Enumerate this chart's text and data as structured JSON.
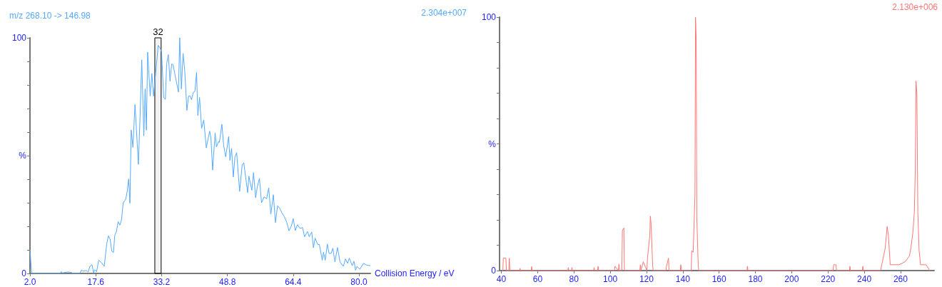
{
  "chart_data": [
    {
      "type": "line",
      "title": "m/z 268.10 -> 146.98",
      "annotations": [
        "2.304e+007"
      ],
      "xlabel": "Collision Energy / eV",
      "marker": "none",
      "xlim": [
        2,
        82.7
      ],
      "xticks": [
        {
          "value": 2,
          "label": "2.0"
        },
        {
          "value": 17.6,
          "label": "17.6"
        },
        {
          "value": 33.2,
          "label": "33.2"
        },
        {
          "value": 48.8,
          "label": "48.8"
        },
        {
          "value": 64.4,
          "label": "64.4"
        },
        {
          "value": 80,
          "label": "80.0"
        }
      ],
      "ylim": [
        0,
        100
      ],
      "yticks": [
        {
          "value": 0,
          "label": "0"
        },
        {
          "value": 10,
          "label": null
        },
        {
          "value": 20,
          "label": null
        },
        {
          "value": 30,
          "label": null
        },
        {
          "value": 40,
          "label": null
        },
        {
          "value": 50,
          "label": "%"
        },
        {
          "value": 60,
          "label": null
        },
        {
          "value": 70,
          "label": null
        },
        {
          "value": 80,
          "label": null
        },
        {
          "value": 90,
          "label": null
        },
        100
      ],
      "bands": [
        {
          "axis": "x",
          "from": 31.6,
          "to": 33.1,
          "label": "32",
          "color": "#000000"
        }
      ],
      "series": [
        {
          "color": "#55aaff",
          "x": [
            2.0,
            2.4,
            9.2,
            9.4,
            9.7,
            10.8,
            11.6,
            12.4,
            13.8,
            14.2,
            14.6,
            15.4,
            15.8,
            16.2,
            16.7,
            17.1,
            17.3,
            17.8,
            18.3,
            19.0,
            19.6,
            20.2,
            20.6,
            21.0,
            21.4,
            21.8,
            22.1,
            22.5,
            22.9,
            23.3,
            23.7,
            24.1,
            24.7,
            25.0,
            25.4,
            25.7,
            26.0,
            26.4,
            26.9,
            27.7,
            28.1,
            28.5,
            29.0,
            29.3,
            29.6,
            29.9,
            30.5,
            30.9,
            31.3,
            32.4,
            32.9,
            33.2,
            33.7,
            34.1,
            34.4,
            34.8,
            35.2,
            35.6,
            35.9,
            36.5,
            37.2,
            37.5,
            37.9,
            38.3,
            38.7,
            39.2,
            39.6,
            40.0,
            40.3,
            40.7,
            41.1,
            41.5,
            41.8,
            42.2,
            42.7,
            43.2,
            43.8,
            44.6,
            44.9,
            45.3,
            45.9,
            46.2,
            46.7,
            46.9,
            47.5,
            47.9,
            48.4,
            49.1,
            49.4,
            49.8,
            50.2,
            50.6,
            51.0,
            51.7,
            52.3,
            52.7,
            53.6,
            53.9,
            54.6,
            55.0,
            55.5,
            55.9,
            56.4,
            56.9,
            57.5,
            58.1,
            58.6,
            59.1,
            59.7,
            60.2,
            60.7,
            61.2,
            61.7,
            62.3,
            62.9,
            63.4,
            64.0,
            64.4,
            64.9,
            65.4,
            66.0,
            66.6,
            67.1,
            67.8,
            68.2,
            68.8,
            69.2,
            69.6,
            70.2,
            70.6,
            71.3,
            71.6,
            72.0,
            72.5,
            72.9,
            73.4,
            73.8,
            74.3,
            74.9,
            75.5,
            76.3,
            76.8,
            77.3,
            77.7,
            78.4,
            78.8,
            79.2,
            79.5,
            80.2,
            81.1,
            81.8,
            82.7
          ],
          "values": [
            10.1,
            0,
            0,
            0.8,
            0.2,
            0.6,
            0.5,
            0,
            0,
            1.4,
            1.0,
            1.2,
            0.6,
            3,
            3.7,
            0.2,
            1.5,
            0.8,
            5.6,
            4.5,
            3,
            12.6,
            15.9,
            14.6,
            9.4,
            8.9,
            16.2,
            17.7,
            22,
            20.5,
            22.7,
            30,
            31.5,
            34.3,
            40.1,
            29.8,
            60.9,
            53.5,
            71.7,
            46.3,
            66.5,
            90.7,
            58.4,
            78.3,
            60.8,
            93.9,
            75.3,
            84.8,
            75.3,
            96.8,
            95.5,
            93.9,
            74.7,
            73.9,
            88.9,
            92.9,
            81.6,
            88.9,
            88.7,
            83.3,
            77,
            100,
            78.3,
            93.4,
            85.9,
            69.2,
            75.3,
            75.3,
            73.7,
            76.8,
            77.3,
            85.4,
            67,
            74.7,
            61.6,
            65.2,
            53.3,
            60.4,
            57.6,
            43.9,
            59.6,
            53.7,
            56,
            55.6,
            63.3,
            54.5,
            49.5,
            58.1,
            48,
            53.1,
            40.9,
            49.5,
            51.3,
            34.8,
            46,
            47,
            34.3,
            41.3,
            35.3,
            42.8,
            32.1,
            36.8,
            40.3,
            30,
            32.5,
            31.7,
            36.3,
            25.2,
            33.4,
            21.6,
            28.7,
            27.7,
            25.8,
            24.1,
            21.6,
            18.1,
            20.3,
            23.3,
            18.2,
            20.7,
            19.1,
            19.5,
            15.6,
            17.8,
            15.6,
            17.6,
            10.9,
            15,
            12.3,
            12.3,
            5.6,
            9,
            5.6,
            12.5,
            8.5,
            8.5,
            10.7,
            4.9,
            11,
            4.9,
            3,
            6.2,
            4.3,
            6.5,
            3.3,
            5.2,
            1.4,
            3,
            1.8,
            4.3,
            3.5,
            3.3
          ]
        }
      ]
    },
    {
      "type": "line",
      "annotations": [
        "2.130e+006"
      ],
      "marker": "none",
      "xlim": [
        39,
        278.5
      ],
      "xticks": [
        40,
        60,
        80,
        100,
        120,
        140,
        160,
        180,
        200,
        220,
        240,
        260
      ],
      "ylim": [
        0,
        100
      ],
      "yticks": [
        {
          "value": 0,
          "label": "0"
        },
        {
          "value": 10,
          "label": null
        },
        {
          "value": 20,
          "label": null
        },
        {
          "value": 30,
          "label": null
        },
        {
          "value": 40,
          "label": null
        },
        {
          "value": 50,
          "label": "%"
        },
        {
          "value": 60,
          "label": null
        },
        {
          "value": 70,
          "label": null
        },
        {
          "value": 80,
          "label": null
        },
        {
          "value": 90,
          "label": null
        },
        100
      ],
      "series": [
        {
          "color": "#ff7777",
          "x": [
            40.8,
            41.1,
            42.5,
            42.8,
            44.1,
            44.4,
            44.7,
            50.0,
            50.3,
            50.6,
            56.4,
            56.7,
            57.0,
            76.6,
            76.9,
            77.2,
            78.6,
            78.9,
            79.2,
            90.8,
            91.1,
            91.4,
            93.0,
            93.3,
            93.6,
            102.3,
            102.6,
            104.5,
            104.8,
            105.1,
            106.4,
            106.7,
            107.5,
            107.8,
            116.3,
            116.6,
            116.9,
            118.2,
            120.2,
            120.5,
            121.8,
            122.1,
            122.5,
            123.4,
            123.7,
            130.7,
            131.0,
            132.1,
            132.4,
            138.6,
            138.9,
            139.2,
            144.6,
            144.9,
            145.7,
            146.7,
            147.0,
            147.4,
            147.7,
            148.5,
            148.8,
            175.3,
            175.6,
            175.9,
            222.8,
            223.1,
            224.4,
            224.7,
            231.8,
            232.1,
            232.4,
            238.9,
            239.2,
            239.5,
            249.0,
            249.3,
            251.5,
            252.6,
            253.3,
            254.3,
            259.2,
            262.5,
            264.9,
            265.8,
            266.8,
            267.6,
            268.1,
            268.5,
            269.0,
            269.5,
            270.2,
            271.0,
            274.0,
            275.6,
            275.9
          ],
          "values": [
            0,
            4.9,
            4.9,
            0,
            0,
            4.9,
            0,
            0,
            0.9,
            0,
            0,
            1.6,
            0,
            0,
            1.2,
            0,
            0,
            1.2,
            0,
            0,
            1.2,
            0,
            0,
            1.7,
            0,
            0,
            1.7,
            0,
            2.6,
            0,
            0,
            15.7,
            16.8,
            0,
            0,
            2.3,
            0,
            3.5,
            0,
            4.6,
            13.9,
            21.5,
            18.6,
            1.7,
            0,
            0,
            1.7,
            4.9,
            0,
            0,
            2.3,
            0,
            0,
            7.9,
            7.2,
            29.6,
            100,
            90.7,
            20.9,
            1.7,
            0,
            0,
            1.7,
            0,
            0,
            2.3,
            2.3,
            0,
            0,
            1.7,
            0,
            0,
            1.7,
            0,
            0,
            1.2,
            8.7,
            17.4,
            13.9,
            2.3,
            2.3,
            3.5,
            5.8,
            9.5,
            15.1,
            23.2,
            39.4,
            74.8,
            69.6,
            23.2,
            8.1,
            2.3,
            2.3,
            0.6,
            0
          ]
        }
      ]
    }
  ]
}
